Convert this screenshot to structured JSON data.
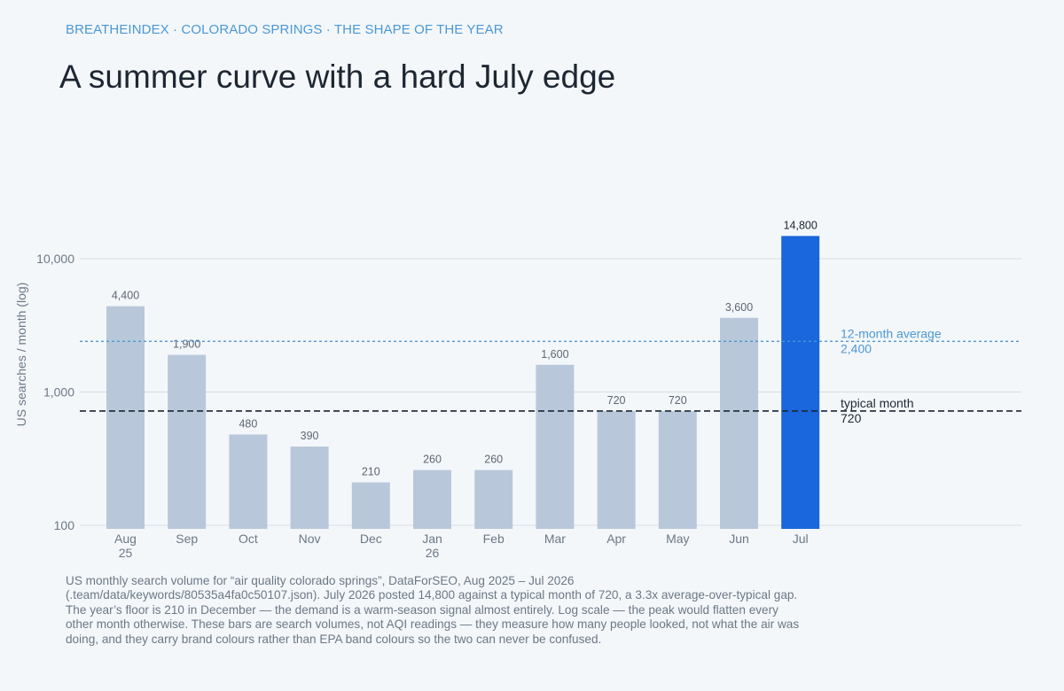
{
  "header": {
    "kicker": "BREATHEINDEX · COLORADO SPRINGS · THE SHAPE OF THE YEAR",
    "title": "A summer curve with a hard July edge"
  },
  "chart_data": {
    "type": "bar",
    "y_scale": "log",
    "ylabel": "US searches / month (log)",
    "ylim": [
      100,
      15000
    ],
    "y_ticks": [
      {
        "value": 100,
        "label": "100"
      },
      {
        "value": 1000,
        "label": "1,000"
      },
      {
        "value": 10000,
        "label": "10,000"
      }
    ],
    "grid": true,
    "categories": [
      {
        "label": "Aug",
        "sublabel": "25"
      },
      {
        "label": "Sep",
        "sublabel": ""
      },
      {
        "label": "Oct",
        "sublabel": ""
      },
      {
        "label": "Nov",
        "sublabel": ""
      },
      {
        "label": "Dec",
        "sublabel": ""
      },
      {
        "label": "Jan",
        "sublabel": "26"
      },
      {
        "label": "Feb",
        "sublabel": ""
      },
      {
        "label": "Mar",
        "sublabel": ""
      },
      {
        "label": "Apr",
        "sublabel": ""
      },
      {
        "label": "May",
        "sublabel": ""
      },
      {
        "label": "Jun",
        "sublabel": ""
      },
      {
        "label": "Jul",
        "sublabel": ""
      }
    ],
    "values": [
      4400,
      1900,
      480,
      390,
      210,
      260,
      260,
      1600,
      720,
      720,
      3600,
      14800
    ],
    "value_labels": [
      "4,400",
      "1,900",
      "480",
      "390",
      "210",
      "260",
      "260",
      "1,600",
      "720",
      "720",
      "3,600",
      "14,800"
    ],
    "highlight_index": 11,
    "reference_lines": [
      {
        "name": "12-month average",
        "value": 2400,
        "value_label": "2,400",
        "style": "dotted",
        "color": "#4a98d6"
      },
      {
        "name": "typical month",
        "value": 720,
        "value_label": "720",
        "style": "dashed",
        "color": "#1d2733"
      }
    ],
    "colors": {
      "bar": "#b8c8da",
      "highlight": "#1a66dd",
      "grid": "#d6dde5",
      "axis_text": "#6b7886",
      "value_text": "#5c6672",
      "highlight_value_text": "#1d2733"
    }
  },
  "footnote": "US monthly search volume for “air quality colorado springs”, DataForSEO, Aug 2025 – Jul 2026 (.team/data/keywords/80535a4fa0c50107.json). July 2026 posted 14,800 against a typical month of 720, a 3.3x average-over-typical gap. The year’s floor is 210 in December — the demand is a warm-season signal almost entirely. Log scale — the peak would flatten every other month otherwise. These bars are search volumes, not AQI readings — they measure how many people looked, not what the air was doing, and they carry brand colours rather than EPA band colours so the two can never be confused."
}
